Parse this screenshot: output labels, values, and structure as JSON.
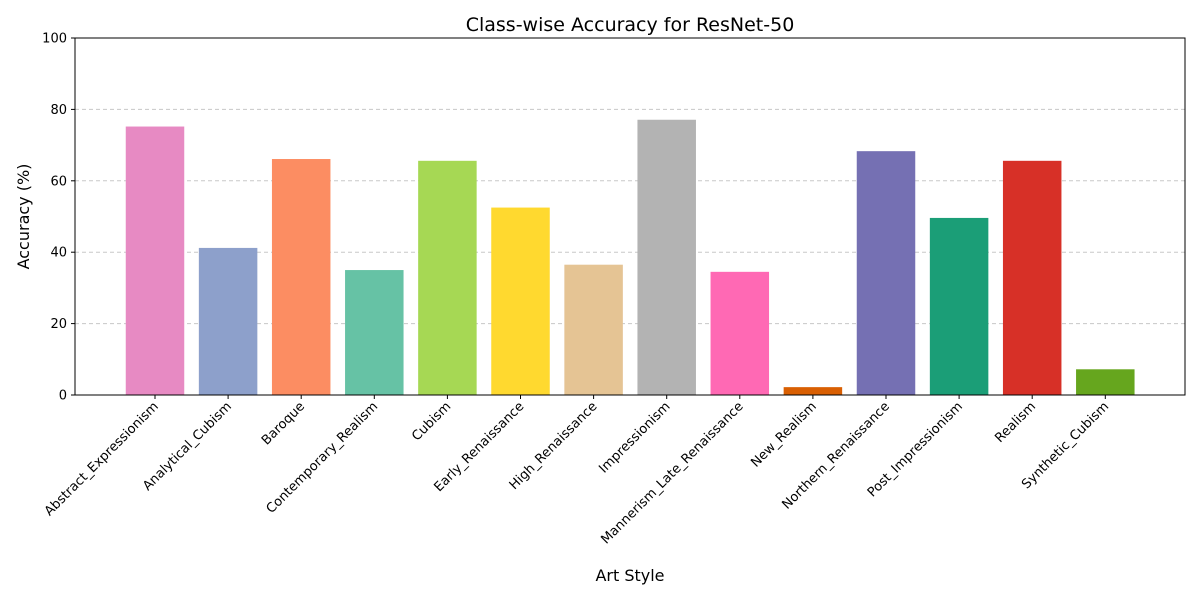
{
  "chart_data": {
    "type": "bar",
    "title": "Class-wise Accuracy for ResNet-50",
    "xlabel": "Art Style",
    "ylabel": "Accuracy (%)",
    "ylim": [
      0,
      100
    ],
    "yticks": [
      0,
      20,
      40,
      60,
      80,
      100
    ],
    "grid": "y-dashed",
    "categories": [
      "Abstract_Expressionism",
      "Analytical_Cubism",
      "Baroque",
      "Contemporary_Realism",
      "Cubism",
      "Early_Renaissance",
      "High_Renaissance",
      "Impressionism",
      "Mannerism_Late_Renaissance",
      "New_Realism",
      "Northern_Renaissance",
      "Post_Impressionism",
      "Realism",
      "Synthetic_Cubism"
    ],
    "values": [
      75.2,
      41.2,
      66.1,
      35.0,
      65.6,
      52.5,
      36.5,
      77.1,
      34.5,
      2.2,
      68.3,
      49.6,
      65.6,
      7.2
    ],
    "colors": [
      "#e78ac3",
      "#8da0cb",
      "#fc8d62",
      "#66c2a5",
      "#a6d854",
      "#ffd92f",
      "#e5c494",
      "#b3b3b3",
      "#ff69b4",
      "#d95f02",
      "#7570b3",
      "#1b9e77",
      "#d73027",
      "#66a61e"
    ]
  }
}
